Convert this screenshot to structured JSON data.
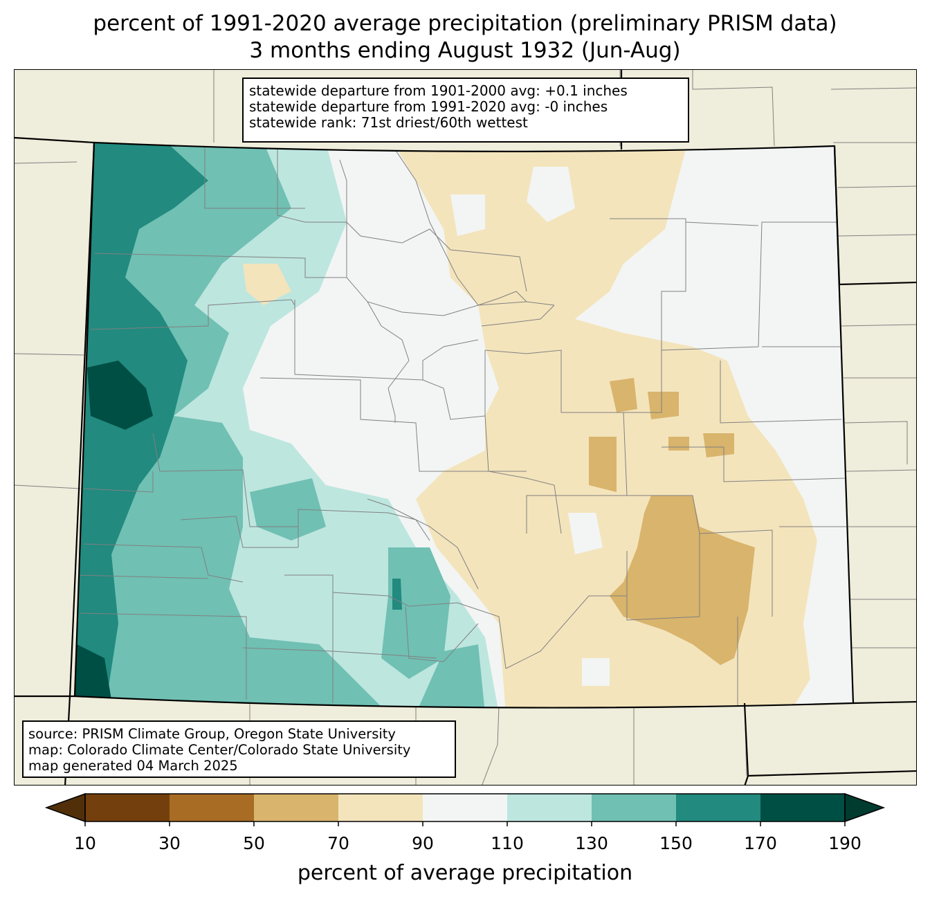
{
  "title": {
    "line1": "percent of 1991-2020 average precipitation (preliminary PRISM data)",
    "line2": "3 months ending August 1932 (Jun-Aug)"
  },
  "stats": {
    "line1": "statewide departure from 1901-2000 avg: +0.1 inches",
    "line2": "statewide departure from 1991-2020 avg: -0 inches",
    "line3": "statewide rank: 71st driest/60th wettest"
  },
  "source": {
    "line1": "source: PRISM Climate Group, Oregon State University",
    "line2": "map: Colorado Climate Center/Colorado State University",
    "line3": "map generated 04 March 2025"
  },
  "colorbar": {
    "label": "percent of average precipitation",
    "ticks": [
      "10",
      "30",
      "50",
      "70",
      "90",
      "110",
      "130",
      "150",
      "170",
      "190"
    ],
    "bins": [
      {
        "range": "10-30",
        "color": "#733f0c"
      },
      {
        "range": "30-50",
        "color": "#a86c24"
      },
      {
        "range": "50-70",
        "color": "#d9b46c"
      },
      {
        "range": "70-90",
        "color": "#f3e4bc"
      },
      {
        "range": "90-110",
        "color": "#f3f5f4"
      },
      {
        "range": "110-130",
        "color": "#bde6df"
      },
      {
        "range": "130-150",
        "color": "#70c0b3"
      },
      {
        "range": "150-170",
        "color": "#228a7f"
      },
      {
        "range": "170-190",
        "color": "#004f44"
      }
    ],
    "under_color": "#513009",
    "over_color": "#003b30"
  },
  "colors": {
    "background_land": "#efeddb",
    "county_lines": "#808080",
    "state_lines": "#000000"
  }
}
